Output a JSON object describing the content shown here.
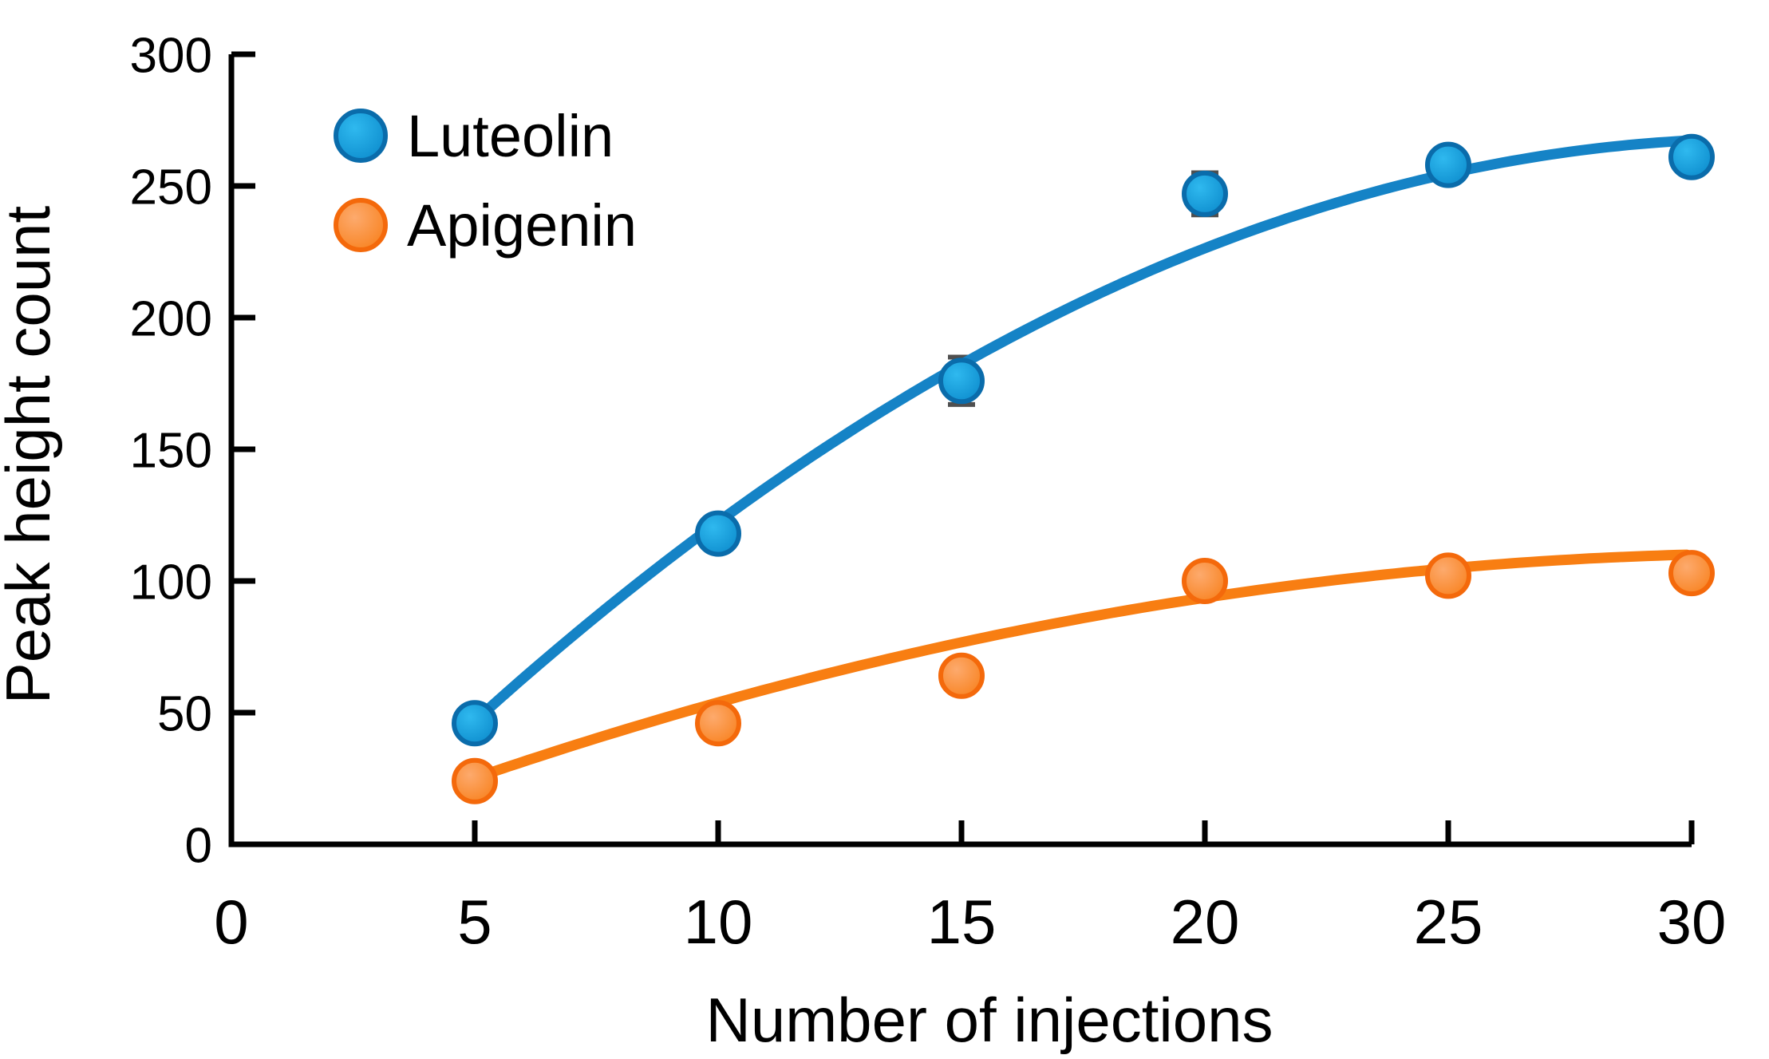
{
  "figure": {
    "background": "#ffffff",
    "text_color": "#000000",
    "axis_color": "#000000",
    "error_bar_color": "#4f4f4f"
  },
  "chart_data": {
    "type": "scatter",
    "title": "",
    "xlabel": "Number of injections",
    "ylabel": "Peak height count",
    "xlim": [
      0,
      30
    ],
    "ylim": [
      0,
      300
    ],
    "x_ticks": [
      0,
      5,
      10,
      15,
      20,
      25,
      30
    ],
    "y_ticks": [
      0,
      50,
      100,
      150,
      200,
      250,
      300
    ],
    "grid": false,
    "legend_position": "top-left",
    "series": [
      {
        "name": "Luteolin",
        "line_color": "#1583c6",
        "marker_inner": "#2fb9ef",
        "marker_outer": "#0d8ccd",
        "marker_stroke": "#0a6cab",
        "x": [
          5,
          10,
          15,
          20,
          25,
          30
        ],
        "y": [
          46,
          118,
          176,
          247,
          258,
          261
        ],
        "yerr": [
          0,
          0,
          9,
          8,
          6,
          0
        ],
        "trend": {
          "type": "quadratic",
          "peak_x": 31.5,
          "peak_y": 268,
          "k": 0.315,
          "x_start": 4.9,
          "x_end": 30
        }
      },
      {
        "name": "Apigenin",
        "line_color": "#f87e12",
        "marker_inner": "#fdaa6d",
        "marker_outer": "#f8821f",
        "marker_stroke": "#f4690b",
        "x": [
          5,
          10,
          15,
          20,
          25,
          30
        ],
        "y": [
          24,
          46,
          64,
          100,
          102,
          103
        ],
        "yerr": [
          0,
          0,
          0,
          0,
          0,
          0
        ],
        "trend": {
          "type": "quadratic",
          "peak_x": 32,
          "peak_y": 110.5,
          "k": 0.117,
          "x_start": 4.9,
          "x_end": 30
        }
      }
    ]
  }
}
